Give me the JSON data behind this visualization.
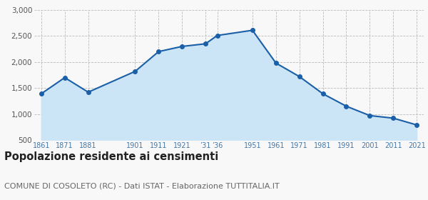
{
  "years": [
    1861,
    1871,
    1881,
    1901,
    1911,
    1921,
    1931,
    1936,
    1951,
    1961,
    1971,
    1981,
    1991,
    2001,
    2011,
    2021
  ],
  "population": [
    1390,
    1700,
    1420,
    1820,
    2200,
    2300,
    2350,
    2510,
    2610,
    1980,
    1720,
    1390,
    1150,
    970,
    920,
    790
  ],
  "x_tick_years": [
    1861,
    1871,
    1881,
    1901,
    1911,
    1921,
    1931,
    1936,
    1951,
    1961,
    1971,
    1981,
    1991,
    2001,
    2011,
    2021
  ],
  "x_tick_labels": [
    "1861",
    "1871",
    "1881",
    "1901",
    "1911",
    "1921",
    "’31",
    "’36",
    "1951",
    "1961",
    "1971",
    "1981",
    "1991",
    "2001",
    "2011",
    "2021"
  ],
  "ylim": [
    500,
    3000
  ],
  "yticks": [
    500,
    1000,
    1500,
    2000,
    2500,
    3000
  ],
  "ytick_labels": [
    "500",
    "1,000",
    "1,500",
    "2,000",
    "2,500",
    "3,000"
  ],
  "line_color": "#1a5fa8",
  "fill_color": "#cce5f6",
  "marker_color": "#1a5fa8",
  "bg_color": "#f8f8f8",
  "grid_color": "#bbbbbb",
  "title": "Popolazione residente ai censimenti",
  "subtitle": "COMUNE DI COSOLETO (RC) - Dati ISTAT - Elaborazione TUTTITALIA.IT",
  "title_fontsize": 10.5,
  "subtitle_fontsize": 8.0
}
